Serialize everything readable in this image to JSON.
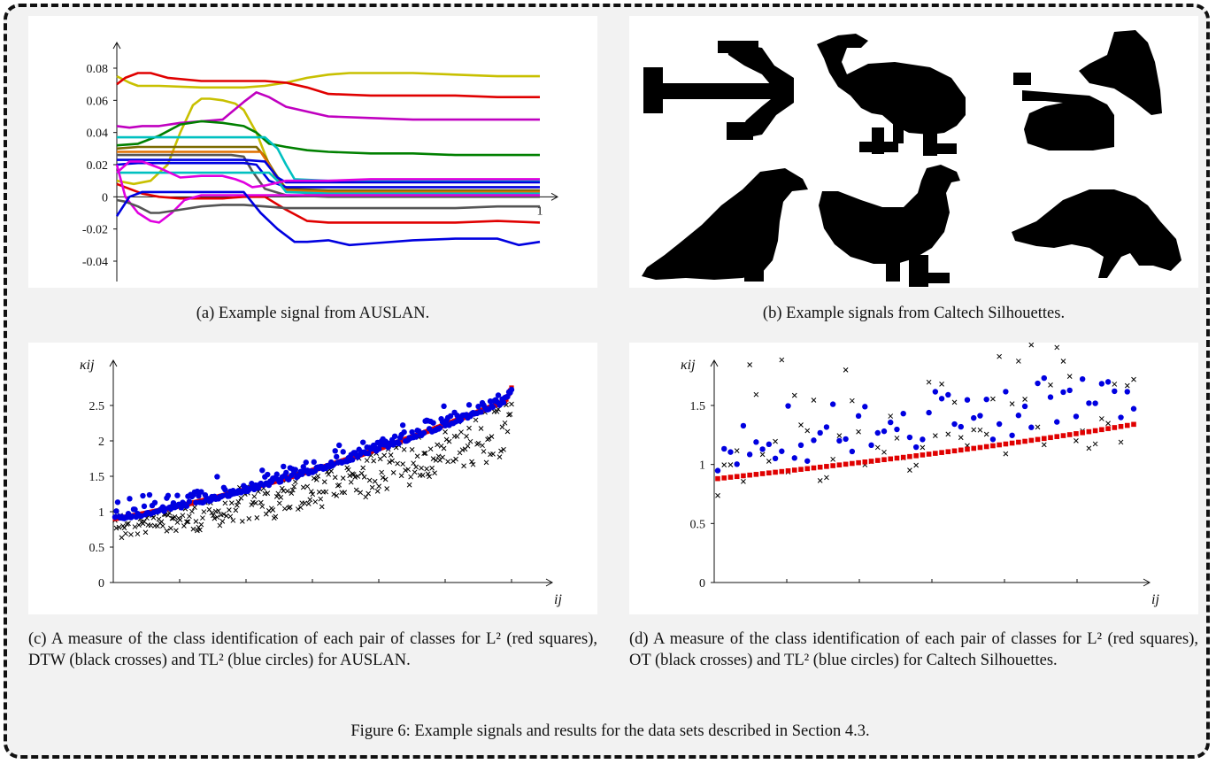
{
  "panels": {
    "a": {
      "caption": "(a) Example signal from AUSLAN.",
      "chart_data": {
        "type": "line",
        "yticks": [
          "0.08",
          "0.06",
          "0.04",
          "0.02",
          "0",
          "-0.02",
          "-0.04"
        ],
        "xticks": [
          "1"
        ],
        "ylim": [
          -0.05,
          0.09
        ],
        "xlim": [
          0,
          1
        ],
        "grid": false,
        "series": [
          {
            "color": "#c8c000",
            "x": [
              0,
              0.03,
              0.05,
              0.1,
              0.2,
              0.3,
              0.35,
              0.4,
              0.45,
              0.5,
              0.55,
              0.6,
              0.7,
              0.8,
              0.9,
              1.0
            ],
            "y": [
              0.075,
              0.071,
              0.069,
              0.069,
              0.068,
              0.068,
              0.069,
              0.071,
              0.074,
              0.076,
              0.077,
              0.077,
              0.077,
              0.076,
              0.075,
              0.075
            ]
          },
          {
            "color": "#e00000",
            "x": [
              0,
              0.02,
              0.05,
              0.08,
              0.12,
              0.2,
              0.3,
              0.35,
              0.4,
              0.45,
              0.5,
              0.6,
              0.7,
              0.8,
              0.9,
              1.0
            ],
            "y": [
              0.07,
              0.074,
              0.077,
              0.077,
              0.074,
              0.072,
              0.072,
              0.072,
              0.071,
              0.068,
              0.064,
              0.063,
              0.063,
              0.063,
              0.062,
              0.062
            ]
          },
          {
            "color": "#c8c000",
            "x": [
              0,
              0.04,
              0.08,
              0.12,
              0.15,
              0.18,
              0.2,
              0.22,
              0.25,
              0.28,
              0.3,
              0.33,
              0.36,
              0.4,
              0.45,
              0.5,
              1.0
            ],
            "y": [
              0.01,
              0.008,
              0.01,
              0.02,
              0.04,
              0.057,
              0.061,
              0.061,
              0.06,
              0.058,
              0.054,
              0.04,
              0.02,
              0.005,
              0.002,
              0.002,
              0.002
            ]
          },
          {
            "color": "#c000c0",
            "x": [
              0,
              0.03,
              0.06,
              0.1,
              0.15,
              0.2,
              0.25,
              0.3,
              0.33,
              0.36,
              0.4,
              0.5,
              0.6,
              0.7,
              0.8,
              0.9,
              1.0
            ],
            "y": [
              0.044,
              0.043,
              0.044,
              0.044,
              0.046,
              0.047,
              0.048,
              0.059,
              0.065,
              0.062,
              0.056,
              0.05,
              0.049,
              0.048,
              0.048,
              0.048,
              0.048
            ]
          },
          {
            "color": "#008000",
            "x": [
              0,
              0.05,
              0.1,
              0.15,
              0.2,
              0.25,
              0.3,
              0.33,
              0.36,
              0.4,
              0.45,
              0.5,
              0.6,
              0.7,
              0.8,
              0.9,
              1.0
            ],
            "y": [
              0.032,
              0.033,
              0.038,
              0.045,
              0.047,
              0.046,
              0.044,
              0.04,
              0.033,
              0.031,
              0.029,
              0.028,
              0.027,
              0.027,
              0.026,
              0.026,
              0.026
            ]
          },
          {
            "color": "#00c0c0",
            "x": [
              0,
              0.05,
              0.1,
              0.2,
              0.3,
              0.35,
              0.38,
              0.4,
              0.42,
              0.5,
              0.6,
              0.7,
              0.8,
              0.9,
              1.0
            ],
            "y": [
              0.037,
              0.037,
              0.037,
              0.037,
              0.037,
              0.037,
              0.03,
              0.02,
              0.011,
              0.01,
              0.01,
              0.01,
              0.01,
              0.01,
              0.01
            ]
          },
          {
            "color": "#7a6a00",
            "x": [
              0,
              0.05,
              0.1,
              0.2,
              0.3,
              0.33,
              0.35,
              0.38,
              0.4,
              0.5,
              0.6,
              0.7,
              0.8,
              0.9,
              1.0
            ],
            "y": [
              0.03,
              0.031,
              0.031,
              0.031,
              0.031,
              0.031,
              0.025,
              0.012,
              0.005,
              0.004,
              0.004,
              0.004,
              0.004,
              0.004,
              0.004
            ]
          },
          {
            "color": "#e07000",
            "x": [
              0,
              0.05,
              0.1,
              0.2,
              0.3,
              0.34,
              0.36,
              0.38,
              0.4,
              0.5,
              0.6,
              0.7,
              0.8,
              0.9,
              1.0
            ],
            "y": [
              0.028,
              0.028,
              0.028,
              0.028,
              0.028,
              0.028,
              0.02,
              0.01,
              0.004,
              0.003,
              0.003,
              0.003,
              0.003,
              0.003,
              0.003
            ]
          },
          {
            "color": "#555555",
            "x": [
              0,
              0.05,
              0.1,
              0.2,
              0.27,
              0.3,
              0.32,
              0.35,
              0.4,
              0.5,
              1.0
            ],
            "y": [
              0.026,
              0.026,
              0.026,
              0.026,
              0.026,
              0.025,
              0.016,
              0.005,
              0.001,
              0.0,
              0.0
            ]
          },
          {
            "color": "#0000e0",
            "x": [
              0,
              0.05,
              0.1,
              0.2,
              0.3,
              0.35,
              0.38,
              0.4,
              0.5,
              0.6,
              0.7,
              0.8,
              0.9,
              1.0
            ],
            "y": [
              0.023,
              0.023,
              0.023,
              0.023,
              0.023,
              0.022,
              0.012,
              0.009,
              0.009,
              0.009,
              0.009,
              0.009,
              0.009,
              0.009
            ]
          },
          {
            "color": "#0000e0",
            "x": [
              0,
              0.05,
              0.1,
              0.2,
              0.3,
              0.33,
              0.36,
              0.4,
              0.5,
              1.0
            ],
            "y": [
              0.02,
              0.021,
              0.021,
              0.021,
              0.021,
              0.02,
              0.01,
              0.006,
              0.006,
              0.006
            ]
          },
          {
            "color": "#00c0c0",
            "x": [
              0,
              0.05,
              0.1,
              0.2,
              0.3,
              0.36,
              0.38,
              0.4,
              0.5,
              1.0
            ],
            "y": [
              0.015,
              0.015,
              0.015,
              0.015,
              0.015,
              0.015,
              0.01,
              0.003,
              0.002,
              0.002
            ]
          },
          {
            "color": "#e000e0",
            "x": [
              0,
              0.03,
              0.06,
              0.1,
              0.15,
              0.2,
              0.25,
              0.28,
              0.3,
              0.32,
              0.35,
              0.4,
              0.5,
              0.6,
              0.7,
              0.8,
              0.9,
              1.0
            ],
            "y": [
              0.015,
              0.022,
              0.022,
              0.018,
              0.012,
              0.013,
              0.013,
              0.011,
              0.009,
              0.006,
              0.007,
              0.01,
              0.01,
              0.011,
              0.011,
              0.011,
              0.011,
              0.011
            ]
          },
          {
            "color": "#e00000",
            "x": [
              0,
              0.03,
              0.06,
              0.1,
              0.15,
              0.2,
              0.25,
              0.3,
              0.35,
              0.4,
              0.45,
              0.5,
              0.6,
              0.7,
              0.8,
              0.9,
              1.0
            ],
            "y": [
              0.008,
              0.005,
              0.002,
              0.0,
              -0.001,
              -0.001,
              -0.001,
              0.0,
              0.0,
              -0.008,
              -0.015,
              -0.016,
              -0.016,
              -0.016,
              -0.016,
              -0.015,
              -0.016
            ]
          },
          {
            "color": "#e000e0",
            "x": [
              0,
              0.02,
              0.05,
              0.08,
              0.1,
              0.13,
              0.16,
              0.2,
              0.25,
              0.3,
              0.35,
              0.4,
              0.5,
              1.0
            ],
            "y": [
              0.02,
              0.0,
              -0.01,
              -0.015,
              -0.016,
              -0.01,
              -0.002,
              0.001,
              0.001,
              0.001,
              0.001,
              0.001,
              0.001,
              0.001
            ]
          },
          {
            "color": "#555555",
            "x": [
              0,
              0.02,
              0.05,
              0.08,
              0.1,
              0.15,
              0.2,
              0.25,
              0.3,
              0.35,
              0.4,
              0.5,
              0.6,
              0.7,
              0.8,
              0.9,
              1.0
            ],
            "y": [
              -0.002,
              -0.003,
              -0.006,
              -0.01,
              -0.01,
              -0.008,
              -0.006,
              -0.005,
              -0.005,
              -0.006,
              -0.007,
              -0.007,
              -0.007,
              -0.007,
              -0.007,
              -0.006,
              -0.006
            ]
          },
          {
            "color": "#0000e0",
            "x": [
              0,
              0.03,
              0.06,
              0.1,
              0.15,
              0.2,
              0.25,
              0.3,
              0.34,
              0.38,
              0.42,
              0.45,
              0.5,
              0.55,
              0.6,
              0.7,
              0.8,
              0.9,
              0.95,
              1.0
            ],
            "y": [
              -0.012,
              0.0,
              0.003,
              0.003,
              0.003,
              0.003,
              0.003,
              0.003,
              -0.01,
              -0.02,
              -0.028,
              -0.028,
              -0.027,
              -0.03,
              -0.029,
              -0.027,
              -0.026,
              -0.026,
              -0.03,
              -0.028
            ]
          }
        ]
      }
    },
    "b": {
      "caption": "(b) Example signals from Caltech Silhouettes.",
      "silhouettes": [
        "arrow-silhouette",
        "bird-silhouette",
        "gramophone-silhouette",
        "crow-silhouette",
        "rooster-silhouette",
        "fish-silhouette"
      ]
    },
    "c": {
      "caption": "(c) A measure of the class identification of each pair of classes for L² (red squares), DTW (black crosses) and TL² (blue circles) for AUSLAN.",
      "chart_data": {
        "type": "scatter",
        "ylabel": "κij",
        "xlabel": "ij",
        "yticks": [
          "0",
          "0.5",
          "1",
          "1.5",
          "2",
          "2.5"
        ],
        "ylim": [
          0,
          2.8
        ],
        "grid": false,
        "n_points": 300,
        "series": [
          {
            "marker": "square",
            "color": "#e00000",
            "trend": {
              "start": 0.9,
              "end": 2.6,
              "curve": "convex"
            }
          },
          {
            "marker": "cross",
            "color": "#000000",
            "offset_range": [
              -0.45,
              0.1
            ]
          },
          {
            "marker": "circle",
            "color": "#0000e0",
            "offset_range": [
              -0.05,
              0.25
            ]
          }
        ]
      }
    },
    "d": {
      "caption": "(d) A measure of the class identification of each pair of classes for L² (red squares), OT (black crosses) and TL² (blue circles) for Caltech Silhouettes.",
      "chart_data": {
        "type": "scatter",
        "ylabel": "κij",
        "xlabel": "ij",
        "yticks": [
          "0",
          "0.5",
          "1",
          "1.5"
        ],
        "ylim": [
          0,
          2.0
        ],
        "grid": false,
        "n_points": 66,
        "series": [
          {
            "marker": "square",
            "color": "#e00000",
            "trend": {
              "start": 0.88,
              "end": 1.34,
              "curve": "mild"
            }
          },
          {
            "marker": "cross",
            "color": "#000000"
          },
          {
            "marker": "circle",
            "color": "#0000e0"
          }
        ]
      }
    }
  },
  "figure_caption": "Figure 6: Example signals and results for the data sets described in Section 4.3."
}
